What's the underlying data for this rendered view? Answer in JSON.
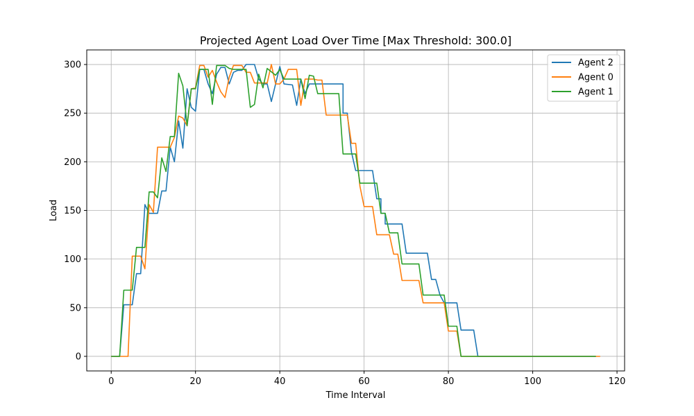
{
  "chart_data": {
    "type": "line",
    "title": "Projected Agent Load Over Time [Max Threshold: 300.0]",
    "xlabel": "Time Interval",
    "ylabel": "Load",
    "xlim": [
      -5.8,
      121.8
    ],
    "ylim": [
      -15,
      315
    ],
    "xticks": [
      0,
      20,
      40,
      60,
      80,
      100,
      120
    ],
    "yticks": [
      0,
      50,
      100,
      150,
      200,
      250,
      300
    ],
    "grid": true,
    "legend_position": "top-right",
    "series": [
      {
        "name": "Agent 2",
        "color": "#1f77b4",
        "points": [
          [
            0,
            0
          ],
          [
            2,
            0
          ],
          [
            3,
            53
          ],
          [
            5,
            53
          ],
          [
            6,
            85
          ],
          [
            7,
            85
          ],
          [
            8,
            156
          ],
          [
            9,
            147
          ],
          [
            11,
            147
          ],
          [
            12,
            170
          ],
          [
            13,
            170
          ],
          [
            14,
            215
          ],
          [
            15,
            200
          ],
          [
            16,
            242
          ],
          [
            17,
            214
          ],
          [
            18,
            275
          ],
          [
            19,
            256
          ],
          [
            20,
            252
          ],
          [
            21,
            295
          ],
          [
            22,
            295
          ],
          [
            23,
            280
          ],
          [
            24,
            270
          ],
          [
            25,
            290
          ],
          [
            26,
            297
          ],
          [
            27,
            297
          ],
          [
            28,
            280
          ],
          [
            29,
            292
          ],
          [
            30,
            294
          ],
          [
            31,
            294
          ],
          [
            32,
            300
          ],
          [
            34,
            300
          ],
          [
            35,
            285
          ],
          [
            36,
            280
          ],
          [
            37,
            280
          ],
          [
            38,
            262
          ],
          [
            39,
            280
          ],
          [
            40,
            298
          ],
          [
            41,
            280
          ],
          [
            43,
            279
          ],
          [
            44,
            258
          ],
          [
            45,
            285
          ],
          [
            46,
            270
          ],
          [
            47,
            280
          ],
          [
            55,
            280
          ],
          [
            55,
            250
          ],
          [
            56,
            250
          ],
          [
            57,
            210
          ],
          [
            58,
            191
          ],
          [
            62,
            191
          ],
          [
            63,
            162
          ],
          [
            64,
            162
          ],
          [
            64,
            147
          ],
          [
            65,
            147
          ],
          [
            65,
            136
          ],
          [
            69,
            136
          ],
          [
            70,
            106
          ],
          [
            75,
            106
          ],
          [
            76,
            79
          ],
          [
            77,
            79
          ],
          [
            78,
            63
          ],
          [
            79,
            55
          ],
          [
            82,
            55
          ],
          [
            83,
            27
          ],
          [
            86,
            27
          ],
          [
            87,
            0
          ],
          [
            115,
            0
          ]
        ]
      },
      {
        "name": "Agent 0",
        "color": "#ff7f0e",
        "points": [
          [
            0,
            0
          ],
          [
            3,
            0
          ],
          [
            4,
            0
          ],
          [
            5,
            103
          ],
          [
            7,
            103
          ],
          [
            8,
            90
          ],
          [
            9,
            156
          ],
          [
            10,
            148
          ],
          [
            11,
            215
          ],
          [
            14,
            215
          ],
          [
            15,
            225
          ],
          [
            16,
            247
          ],
          [
            17,
            245
          ],
          [
            18,
            237
          ],
          [
            19,
            275
          ],
          [
            20,
            276
          ],
          [
            21,
            299
          ],
          [
            22,
            299
          ],
          [
            23,
            287
          ],
          [
            24,
            294
          ],
          [
            25,
            282
          ],
          [
            26,
            272
          ],
          [
            27,
            266
          ],
          [
            28,
            287
          ],
          [
            29,
            299
          ],
          [
            31,
            299
          ],
          [
            32,
            292
          ],
          [
            33,
            292
          ],
          [
            34,
            281
          ],
          [
            37,
            281
          ],
          [
            38,
            300
          ],
          [
            39,
            280
          ],
          [
            40,
            280
          ],
          [
            41,
            285
          ],
          [
            42,
            295
          ],
          [
            44,
            295
          ],
          [
            45,
            258
          ],
          [
            46,
            285
          ],
          [
            48,
            285
          ],
          [
            49,
            284
          ],
          [
            50,
            284
          ],
          [
            51,
            248
          ],
          [
            56,
            248
          ],
          [
            57,
            219
          ],
          [
            58,
            219
          ],
          [
            59,
            175
          ],
          [
            60,
            154
          ],
          [
            62,
            154
          ],
          [
            63,
            125
          ],
          [
            66,
            125
          ],
          [
            67,
            105
          ],
          [
            68,
            105
          ],
          [
            69,
            78
          ],
          [
            73,
            78
          ],
          [
            74,
            55
          ],
          [
            79,
            55
          ],
          [
            80,
            26
          ],
          [
            82,
            26
          ],
          [
            83,
            0
          ],
          [
            116,
            0
          ]
        ]
      },
      {
        "name": "Agent 1",
        "color": "#2ca02c",
        "points": [
          [
            0,
            0
          ],
          [
            2,
            0
          ],
          [
            3,
            68
          ],
          [
            5,
            68
          ],
          [
            6,
            112
          ],
          [
            8,
            112
          ],
          [
            9,
            169
          ],
          [
            10,
            169
          ],
          [
            11,
            163
          ],
          [
            12,
            204
          ],
          [
            13,
            190
          ],
          [
            14,
            226
          ],
          [
            15,
            226
          ],
          [
            16,
            291
          ],
          [
            17,
            278
          ],
          [
            18,
            237
          ],
          [
            19,
            275
          ],
          [
            20,
            275
          ],
          [
            21,
            295
          ],
          [
            23,
            295
          ],
          [
            24,
            259
          ],
          [
            25,
            299
          ],
          [
            27,
            299
          ],
          [
            28,
            296
          ],
          [
            29,
            295
          ],
          [
            32,
            295
          ],
          [
            33,
            256
          ],
          [
            34,
            259
          ],
          [
            35,
            290
          ],
          [
            36,
            276
          ],
          [
            37,
            296
          ],
          [
            39,
            289
          ],
          [
            40,
            295
          ],
          [
            41,
            285
          ],
          [
            42,
            285
          ],
          [
            45,
            285
          ],
          [
            46,
            265
          ],
          [
            47,
            289
          ],
          [
            48,
            288
          ],
          [
            49,
            270
          ],
          [
            54,
            270
          ],
          [
            55,
            208
          ],
          [
            58,
            208
          ],
          [
            59,
            178
          ],
          [
            63,
            178
          ],
          [
            64,
            147
          ],
          [
            65,
            147
          ],
          [
            66,
            127
          ],
          [
            68,
            127
          ],
          [
            69,
            95
          ],
          [
            73,
            95
          ],
          [
            74,
            63
          ],
          [
            79,
            63
          ],
          [
            80,
            31
          ],
          [
            82,
            31
          ],
          [
            83,
            0
          ],
          [
            115,
            0
          ]
        ]
      }
    ]
  }
}
